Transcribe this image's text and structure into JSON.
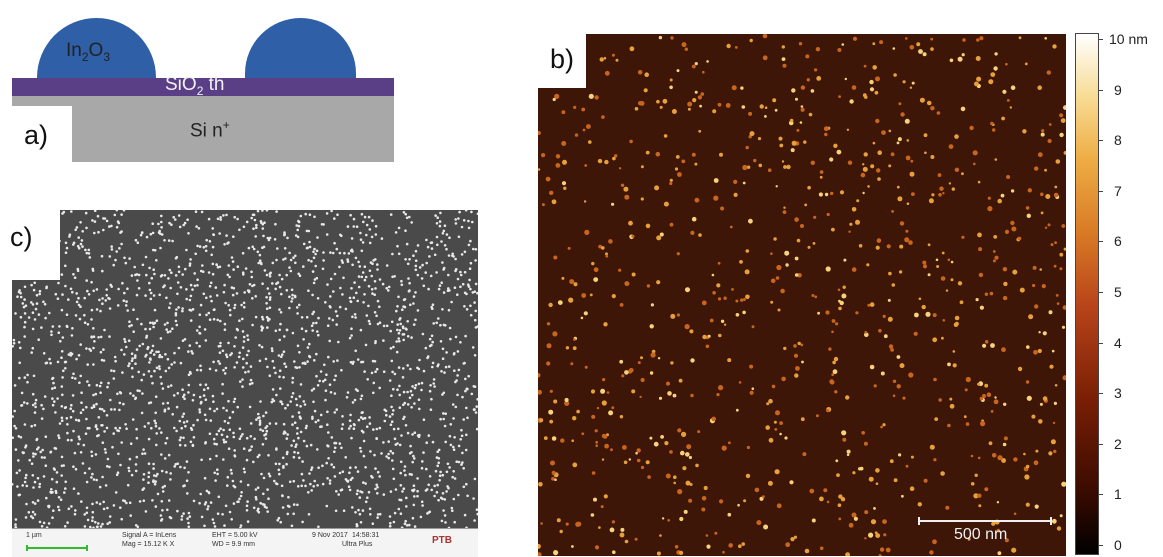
{
  "panel_a": {
    "label": "a)",
    "particle_label": "In",
    "particle_sub1": "2",
    "particle_mid": "O",
    "particle_sub2": "3",
    "oxide_label": "SiO",
    "oxide_sub": "2",
    "oxide_suffix": " th",
    "substrate_label": "Si n",
    "substrate_sup": "+",
    "colors": {
      "particle": "#2f5fa6",
      "oxide": "#5a3f86",
      "substrate": "#a8a8a8"
    }
  },
  "panel_b": {
    "label": "b)",
    "scale_bar": "500 nm",
    "colorbar": {
      "ticks": [
        "10 nm",
        "9",
        "8",
        "7",
        "6",
        "5",
        "4",
        "3",
        "2",
        "1",
        "0"
      ]
    }
  },
  "panel_c": {
    "label": "c)",
    "scale_text": "1 µm",
    "signal": "Signal A = InLens",
    "mag": "Mag = 15.12 K X",
    "eht": "EHT = 5.00 kV",
    "wd": "WD = 9.9 mm",
    "date": "9 Nov 2017",
    "time": "14:58:31",
    "instrument": "Ultra Plus",
    "logo": "PTB"
  }
}
